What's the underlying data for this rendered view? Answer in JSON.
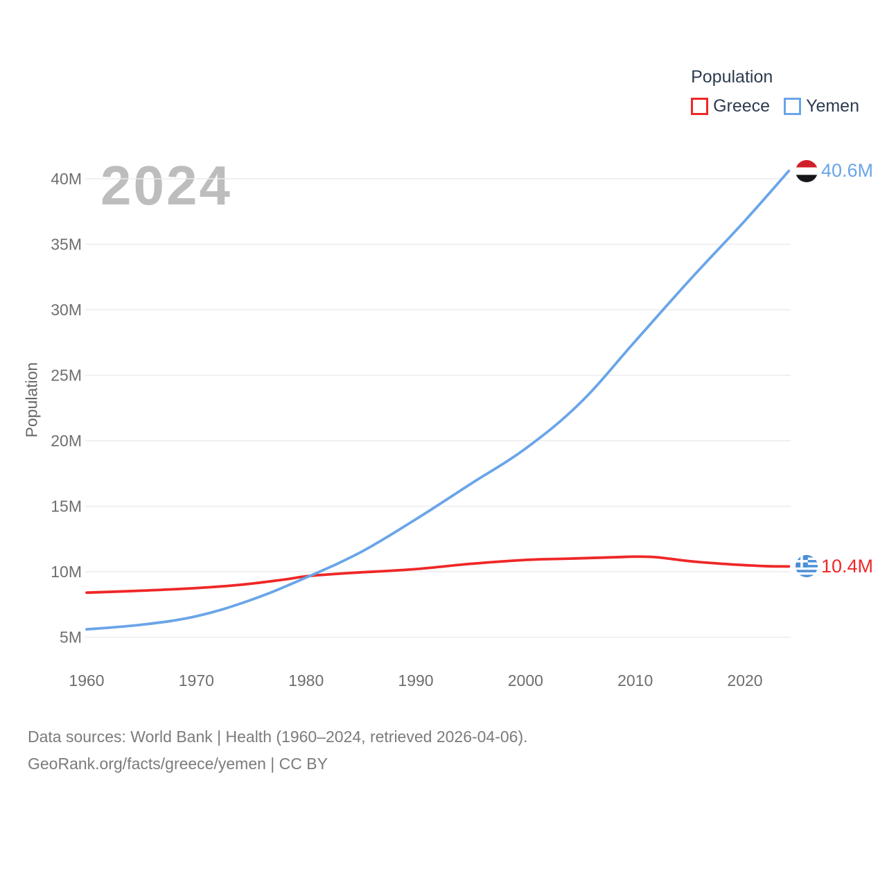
{
  "legend": {
    "title": "Population",
    "items": [
      {
        "label": "Greece",
        "color": "#ef2727"
      },
      {
        "label": "Yemen",
        "color": "#6aa5e8"
      }
    ]
  },
  "watermark": "2024",
  "chart_data": {
    "type": "line",
    "title": "Population",
    "xlabel": "",
    "ylabel": "Population",
    "xlim": [
      1960,
      2024
    ],
    "ylim": [
      5,
      40.6
    ],
    "grid": true,
    "legend_position": "top-right",
    "x_ticks": [
      1960,
      1970,
      1980,
      1990,
      2000,
      2010,
      2020
    ],
    "y_ticks": [
      {
        "value": 5,
        "label": "5M"
      },
      {
        "value": 10,
        "label": "10M"
      },
      {
        "value": 15,
        "label": "15M"
      },
      {
        "value": 20,
        "label": "20M"
      },
      {
        "value": 25,
        "label": "25M"
      },
      {
        "value": 30,
        "label": "30M"
      },
      {
        "value": 35,
        "label": "35M"
      },
      {
        "value": 40,
        "label": "40M"
      }
    ],
    "y_unit": "millions",
    "series": [
      {
        "name": "Greece",
        "color": "#ef2727",
        "flag": "greece",
        "end_label": "10.4M",
        "points": [
          [
            1960,
            8.4
          ],
          [
            1965,
            8.55
          ],
          [
            1970,
            8.75
          ],
          [
            1974,
            9.0
          ],
          [
            1978,
            9.4
          ],
          [
            1980,
            9.65
          ],
          [
            1983,
            9.85
          ],
          [
            1985,
            9.95
          ],
          [
            1990,
            10.2
          ],
          [
            1995,
            10.6
          ],
          [
            2000,
            10.9
          ],
          [
            2004,
            11.0
          ],
          [
            2008,
            11.1
          ],
          [
            2010,
            11.15
          ],
          [
            2012,
            11.1
          ],
          [
            2015,
            10.8
          ],
          [
            2018,
            10.6
          ],
          [
            2020,
            10.5
          ],
          [
            2022,
            10.42
          ],
          [
            2024,
            10.4
          ]
        ]
      },
      {
        "name": "Yemen",
        "color": "#6aa5e8",
        "flag": "yemen",
        "end_label": "40.6M",
        "points": [
          [
            1960,
            5.6
          ],
          [
            1965,
            5.95
          ],
          [
            1970,
            6.6
          ],
          [
            1975,
            7.85
          ],
          [
            1980,
            9.55
          ],
          [
            1985,
            11.5
          ],
          [
            1990,
            14.0
          ],
          [
            1995,
            16.7
          ],
          [
            2000,
            19.4
          ],
          [
            2005,
            22.9
          ],
          [
            2010,
            27.6
          ],
          [
            2015,
            32.3
          ],
          [
            2020,
            36.8
          ],
          [
            2024,
            40.6
          ]
        ]
      }
    ]
  },
  "footer": {
    "line1": "Data sources: World Bank | Health (1960–2024, retrieved 2026-04-06).",
    "line2": "GeoRank.org/facts/greece/yemen | CC BY"
  }
}
